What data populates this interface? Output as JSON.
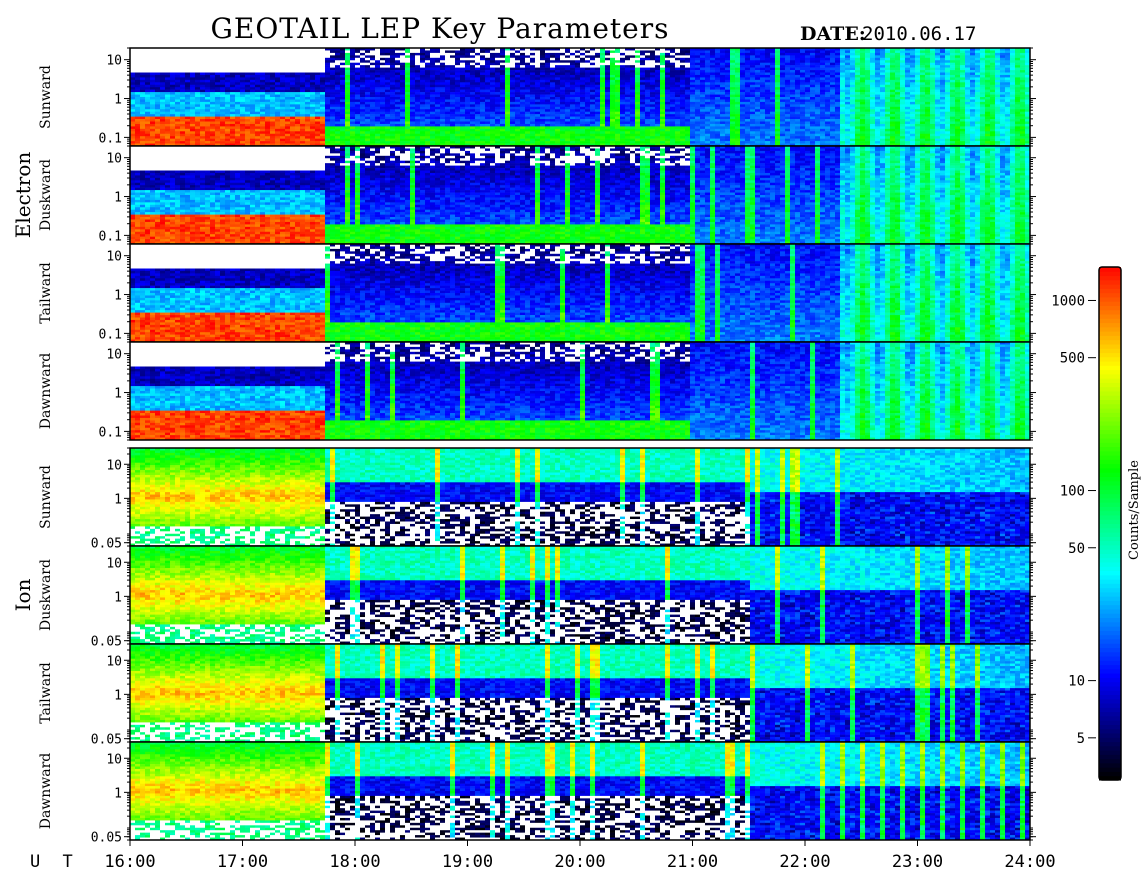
{
  "title": "GEOTAIL LEP Key Parameters",
  "date_label": "DATE:",
  "date_value": "2010.06.17",
  "chart_data": {
    "type": "heatmap",
    "title": "GEOTAIL LEP Key Parameters",
    "x_axis": {
      "label": "U T",
      "range_hours": [
        16,
        24
      ],
      "ticks": [
        "16:00",
        "17:00",
        "18:00",
        "19:00",
        "20:00",
        "21:00",
        "22:00",
        "23:00",
        "24:00"
      ]
    },
    "groups": [
      {
        "name": "Electron",
        "panels": [
          "Sunward",
          "Duskward",
          "Tailward",
          "Dawnward"
        ],
        "y_ticks": [
          "10",
          "1",
          "0.1"
        ],
        "y_scale": "log",
        "y_range": [
          0.06,
          20
        ]
      },
      {
        "name": "Ion",
        "panels": [
          "Sunward",
          "Duskward",
          "Tailward",
          "Dawnward"
        ],
        "y_ticks": [
          "10",
          "1",
          "0.05"
        ],
        "y_scale": "log",
        "y_range": [
          0.04,
          30
        ]
      }
    ],
    "colorbar": {
      "label": "Counts/Sample",
      "scale": "log",
      "range": [
        3,
        1500
      ],
      "ticks": [
        "1000",
        "500",
        "100",
        "50",
        "10",
        "5"
      ],
      "colors": [
        "#000000",
        "#0000ff",
        "#00ffff",
        "#00ff00",
        "#ffff00",
        "#ff0000"
      ]
    }
  }
}
